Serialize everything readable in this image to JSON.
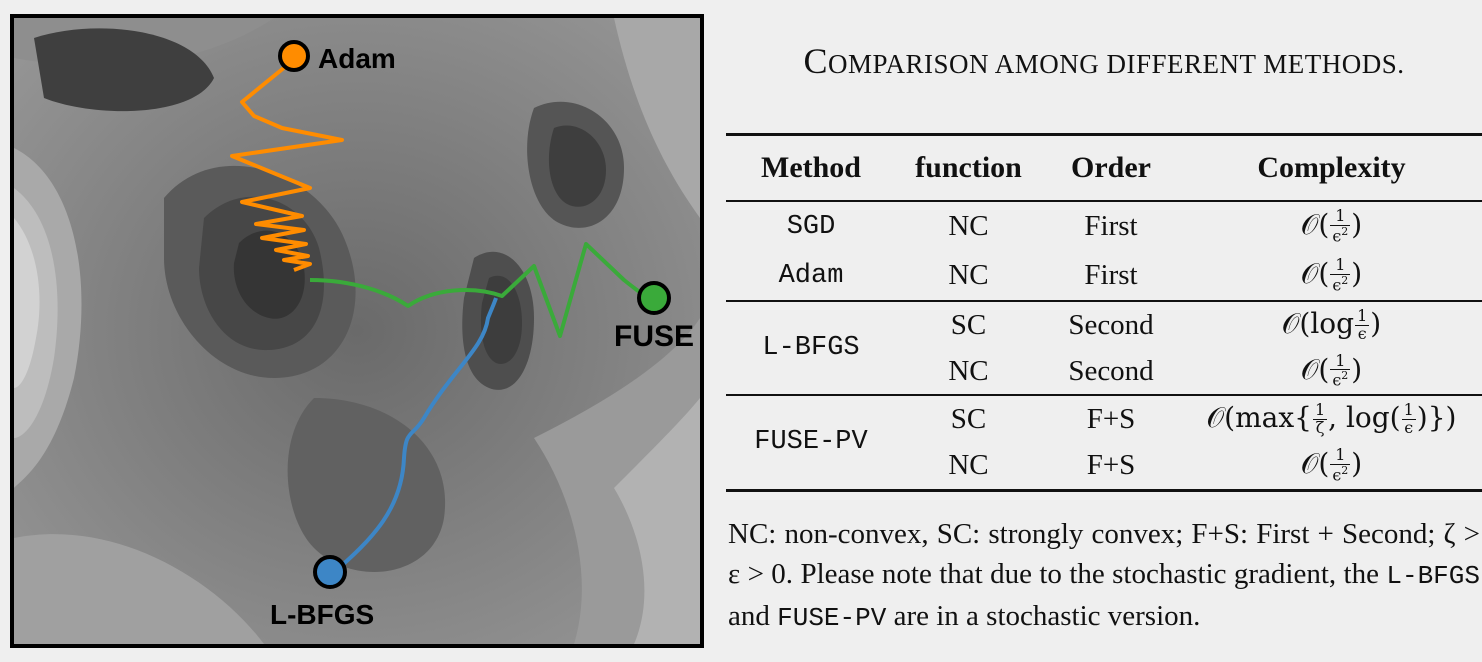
{
  "figure": {
    "labels": {
      "adam": "Adam",
      "fuse": "FUSE",
      "lbfgs": "L-BFGS"
    },
    "colors": {
      "adam": "#ff8c00",
      "fuse": "#3aaa3a",
      "lbfgs": "#3d86c6"
    }
  },
  "table": {
    "caption_first": "C",
    "caption_rest": "OMPARISON AMONG DIFFERENT METHODS.",
    "headers": {
      "method": "Method",
      "function": "function",
      "order": "Order",
      "complexity": "Complexity"
    },
    "rows": [
      {
        "method": "SGD",
        "function": "NC",
        "order": "First",
        "complexity": "O(1/ε²)"
      },
      {
        "method": "Adam",
        "function": "NC",
        "order": "First",
        "complexity": "O(1/ε²)"
      },
      {
        "method": "L-BFGS",
        "function": "SC",
        "order": "Second",
        "complexity": "O(log 1/ε)"
      },
      {
        "method": "",
        "function": "NC",
        "order": "Second",
        "complexity": "O(1/ε²)"
      },
      {
        "method": "FUSE-PV",
        "function": "SC",
        "order": "F+S",
        "complexity": "O(max{1/ζ, log(1/ε)})"
      },
      {
        "method": "",
        "function": "NC",
        "order": "F+S",
        "complexity": "O(1/ε²)"
      }
    ],
    "note": {
      "part1": "NC: non-convex, SC: strongly convex; F+S: First + Second; ζ > ε > 0. Please note that due to the stochastic gradient, the ",
      "code1": "L-BFGS",
      "part2": " and ",
      "code2": "FUSE-PV",
      "part3": " are in a stochastic version."
    }
  }
}
